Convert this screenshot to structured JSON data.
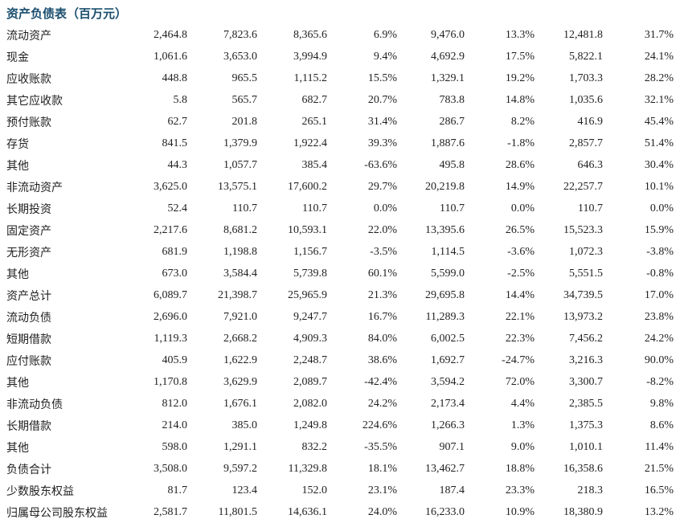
{
  "title": "资产负债表（百万元）",
  "colors": {
    "accent": "#1A4E6E",
    "text": "#1f1f1f",
    "background": "#ffffff"
  },
  "table": {
    "rows": [
      {
        "label": "流动资产",
        "values": [
          "2,464.8",
          "7,823.6",
          "8,365.6",
          "6.9%",
          "9,476.0",
          "13.3%",
          "12,481.8",
          "31.7%"
        ]
      },
      {
        "label": "现金",
        "values": [
          "1,061.6",
          "3,653.0",
          "3,994.9",
          "9.4%",
          "4,692.9",
          "17.5%",
          "5,822.1",
          "24.1%"
        ]
      },
      {
        "label": "应收账款",
        "values": [
          "448.8",
          "965.5",
          "1,115.2",
          "15.5%",
          "1,329.1",
          "19.2%",
          "1,703.3",
          "28.2%"
        ]
      },
      {
        "label": "其它应收款",
        "values": [
          "5.8",
          "565.7",
          "682.7",
          "20.7%",
          "783.8",
          "14.8%",
          "1,035.6",
          "32.1%"
        ]
      },
      {
        "label": "预付账款",
        "values": [
          "62.7",
          "201.8",
          "265.1",
          "31.4%",
          "286.7",
          "8.2%",
          "416.9",
          "45.4%"
        ]
      },
      {
        "label": "存货",
        "values": [
          "841.5",
          "1,379.9",
          "1,922.4",
          "39.3%",
          "1,887.6",
          "-1.8%",
          "2,857.7",
          "51.4%"
        ]
      },
      {
        "label": "其他",
        "values": [
          "44.3",
          "1,057.7",
          "385.4",
          "-63.6%",
          "495.8",
          "28.6%",
          "646.3",
          "30.4%"
        ]
      },
      {
        "label": "非流动资产",
        "values": [
          "3,625.0",
          "13,575.1",
          "17,600.2",
          "29.7%",
          "20,219.8",
          "14.9%",
          "22,257.7",
          "10.1%"
        ]
      },
      {
        "label": "长期投资",
        "values": [
          "52.4",
          "110.7",
          "110.7",
          "0.0%",
          "110.7",
          "0.0%",
          "110.7",
          "0.0%"
        ]
      },
      {
        "label": "固定资产",
        "values": [
          "2,217.6",
          "8,681.2",
          "10,593.1",
          "22.0%",
          "13,395.6",
          "26.5%",
          "15,523.3",
          "15.9%"
        ]
      },
      {
        "label": "无形资产",
        "values": [
          "681.9",
          "1,198.8",
          "1,156.7",
          "-3.5%",
          "1,114.5",
          "-3.6%",
          "1,072.3",
          "-3.8%"
        ]
      },
      {
        "label": "其他",
        "values": [
          "673.0",
          "3,584.4",
          "5,739.8",
          "60.1%",
          "5,599.0",
          "-2.5%",
          "5,551.5",
          "-0.8%"
        ]
      },
      {
        "label": "资产总计",
        "values": [
          "6,089.7",
          "21,398.7",
          "25,965.9",
          "21.3%",
          "29,695.8",
          "14.4%",
          "34,739.5",
          "17.0%"
        ]
      },
      {
        "label": "流动负债",
        "values": [
          "2,696.0",
          "7,921.0",
          "9,247.7",
          "16.7%",
          "11,289.3",
          "22.1%",
          "13,973.2",
          "23.8%"
        ]
      },
      {
        "label": "短期借款",
        "values": [
          "1,119.3",
          "2,668.2",
          "4,909.3",
          "84.0%",
          "6,002.5",
          "22.3%",
          "7,456.2",
          "24.2%"
        ]
      },
      {
        "label": "应付账款",
        "values": [
          "405.9",
          "1,622.9",
          "2,248.7",
          "38.6%",
          "1,692.7",
          "-24.7%",
          "3,216.3",
          "90.0%"
        ]
      },
      {
        "label": "其他",
        "values": [
          "1,170.8",
          "3,629.9",
          "2,089.7",
          "-42.4%",
          "3,594.2",
          "72.0%",
          "3,300.7",
          "-8.2%"
        ]
      },
      {
        "label": "非流动负债",
        "values": [
          "812.0",
          "1,676.1",
          "2,082.0",
          "24.2%",
          "2,173.4",
          "4.4%",
          "2,385.5",
          "9.8%"
        ]
      },
      {
        "label": "长期借款",
        "values": [
          "214.0",
          "385.0",
          "1,249.8",
          "224.6%",
          "1,266.3",
          "1.3%",
          "1,375.3",
          "8.6%"
        ]
      },
      {
        "label": "其他",
        "values": [
          "598.0",
          "1,291.1",
          "832.2",
          "-35.5%",
          "907.1",
          "9.0%",
          "1,010.1",
          "11.4%"
        ]
      },
      {
        "label": "负债合计",
        "values": [
          "3,508.0",
          "9,597.2",
          "11,329.8",
          "18.1%",
          "13,462.7",
          "18.8%",
          "16,358.6",
          "21.5%"
        ]
      },
      {
        "label": "少数股东权益",
        "values": [
          "81.7",
          "123.4",
          "152.0",
          "23.1%",
          "187.4",
          "23.3%",
          "218.3",
          "16.5%"
        ]
      },
      {
        "label": "归属母公司股东权益",
        "values": [
          "2,581.7",
          "11,801.5",
          "14,636.1",
          "24.0%",
          "16,233.0",
          "10.9%",
          "18,380.9",
          "13.2%"
        ]
      }
    ]
  }
}
